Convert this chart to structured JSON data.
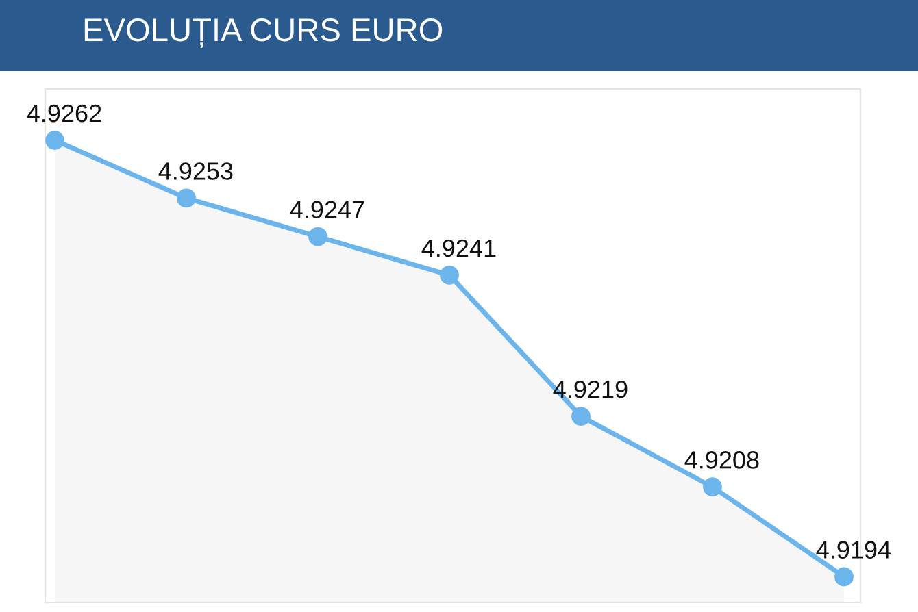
{
  "chart_data": {
    "type": "area",
    "title": "EVOLUȚIA CURS EURO",
    "categories": [
      null,
      null,
      null,
      null,
      null,
      null,
      null
    ],
    "series": [
      {
        "color": "#6cb4ec",
        "values": [
          4.9262,
          4.9253,
          4.9247,
          4.9241,
          4.9219,
          4.9208,
          4.9194
        ]
      }
    ],
    "ylim": [
      4.919,
      4.927
    ],
    "data_labels": true,
    "marker": "circle",
    "grid": false,
    "legend": false
  }
}
